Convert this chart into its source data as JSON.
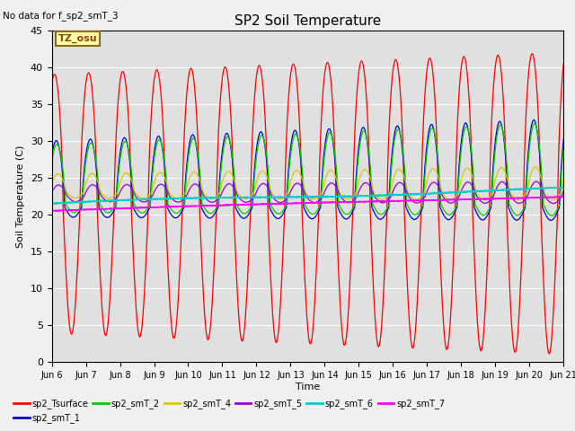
{
  "title": "SP2 Soil Temperature",
  "xlabel": "Time",
  "ylabel": "Soil Temperature (C)",
  "note": "No data for f_sp2_smT_3",
  "tz_label": "TZ_osu",
  "ylim": [
    0,
    45
  ],
  "xlim": [
    0,
    15
  ],
  "xtick_labels": [
    "Jun 6",
    "Jun 7",
    "Jun 8",
    "Jun 9",
    "Jun 10",
    "Jun 11",
    "Jun 12",
    "Jun 13",
    "Jun 14",
    "Jun 15",
    "Jun 16",
    "Jun 17",
    "Jun 18",
    "Jun 19",
    "Jun 20",
    "Jun 21"
  ],
  "fig_bg_color": "#f0f0f0",
  "plot_bg_color": "#e0e0e0",
  "series_colors": {
    "sp2_Tsurface": "#ff0000",
    "sp2_smT_1": "#0000cc",
    "sp2_smT_2": "#00cc00",
    "sp2_smT_4": "#cccc00",
    "sp2_smT_5": "#9900cc",
    "sp2_smT_6": "#00cccc",
    "sp2_smT_7": "#ff00ff"
  }
}
